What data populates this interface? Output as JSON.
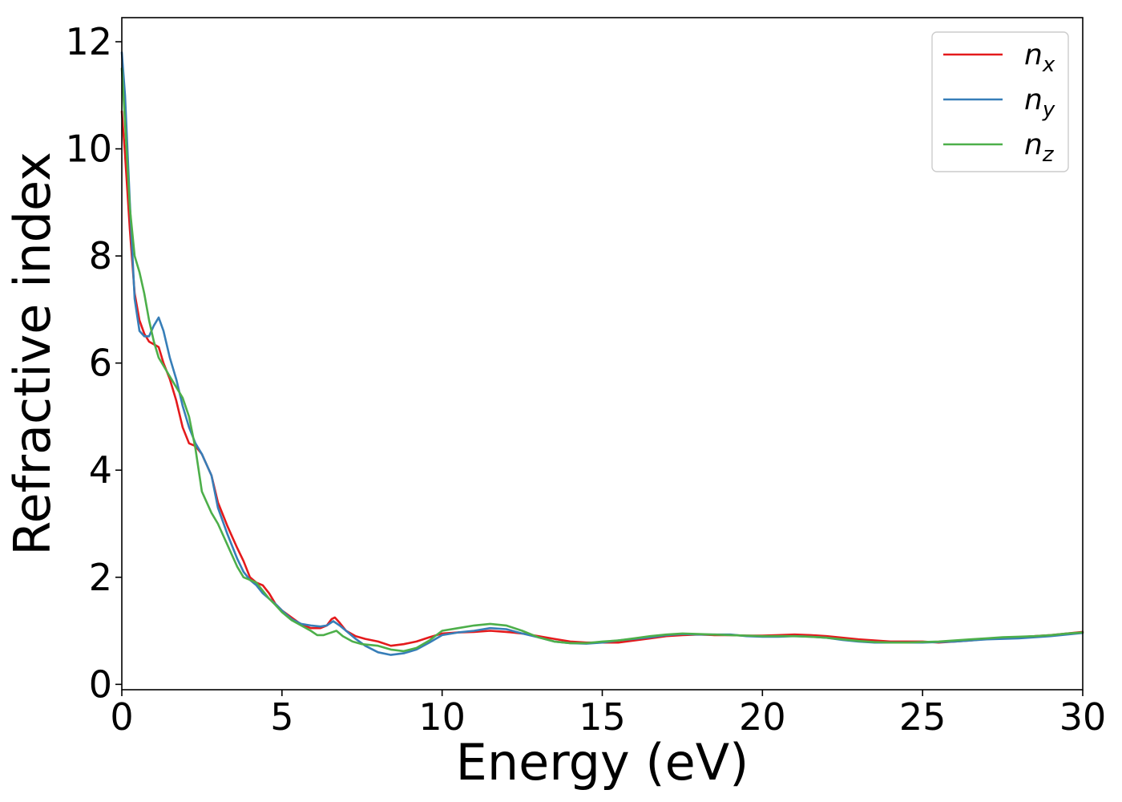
{
  "chart_data": {
    "type": "line",
    "xlabel": "Energy (eV)",
    "ylabel": "Refractive index",
    "xlim": [
      0,
      30
    ],
    "ylim": [
      -0.1,
      12.45
    ],
    "xticks": [
      0,
      5,
      10,
      15,
      20,
      25,
      30
    ],
    "yticks": [
      0,
      2,
      4,
      6,
      8,
      10,
      12
    ],
    "grid": false,
    "legend_position": "top-right",
    "series": [
      {
        "name": "n",
        "subscript": "x",
        "color": "#e41a1c",
        "points": [
          [
            0,
            10.7
          ],
          [
            0.1,
            9.9
          ],
          [
            0.25,
            8.5
          ],
          [
            0.4,
            7.3
          ],
          [
            0.55,
            6.8
          ],
          [
            0.7,
            6.55
          ],
          [
            0.85,
            6.4
          ],
          [
            1.0,
            6.35
          ],
          [
            1.15,
            6.3
          ],
          [
            1.3,
            6.0
          ],
          [
            1.5,
            5.7
          ],
          [
            1.7,
            5.3
          ],
          [
            1.9,
            4.8
          ],
          [
            2.1,
            4.5
          ],
          [
            2.3,
            4.45
          ],
          [
            2.5,
            4.3
          ],
          [
            2.8,
            3.9
          ],
          [
            3.0,
            3.4
          ],
          [
            3.3,
            2.95
          ],
          [
            3.6,
            2.55
          ],
          [
            3.8,
            2.3
          ],
          [
            4.0,
            2.0
          ],
          [
            4.2,
            1.9
          ],
          [
            4.4,
            1.85
          ],
          [
            4.6,
            1.7
          ],
          [
            4.8,
            1.5
          ],
          [
            5.0,
            1.38
          ],
          [
            5.3,
            1.25
          ],
          [
            5.6,
            1.12
          ],
          [
            5.9,
            1.05
          ],
          [
            6.2,
            1.05
          ],
          [
            6.4,
            1.1
          ],
          [
            6.55,
            1.22
          ],
          [
            6.65,
            1.25
          ],
          [
            6.8,
            1.15
          ],
          [
            7.0,
            1.0
          ],
          [
            7.3,
            0.9
          ],
          [
            7.6,
            0.85
          ],
          [
            8.0,
            0.8
          ],
          [
            8.4,
            0.72
          ],
          [
            8.8,
            0.75
          ],
          [
            9.2,
            0.8
          ],
          [
            9.6,
            0.88
          ],
          [
            10.0,
            0.95
          ],
          [
            10.5,
            0.97
          ],
          [
            11.0,
            0.98
          ],
          [
            11.5,
            1.0
          ],
          [
            12.0,
            0.98
          ],
          [
            12.5,
            0.95
          ],
          [
            13.0,
            0.9
          ],
          [
            13.5,
            0.85
          ],
          [
            14.0,
            0.8
          ],
          [
            14.5,
            0.78
          ],
          [
            15.0,
            0.78
          ],
          [
            15.5,
            0.78
          ],
          [
            16.0,
            0.82
          ],
          [
            16.5,
            0.86
          ],
          [
            17.0,
            0.9
          ],
          [
            17.5,
            0.92
          ],
          [
            18.0,
            0.93
          ],
          [
            18.5,
            0.92
          ],
          [
            19.0,
            0.92
          ],
          [
            19.5,
            0.91
          ],
          [
            20.0,
            0.91
          ],
          [
            20.5,
            0.92
          ],
          [
            21.0,
            0.93
          ],
          [
            21.5,
            0.92
          ],
          [
            22.0,
            0.9
          ],
          [
            22.5,
            0.87
          ],
          [
            23.0,
            0.84
          ],
          [
            23.5,
            0.82
          ],
          [
            24.0,
            0.8
          ],
          [
            24.5,
            0.8
          ],
          [
            25.0,
            0.8
          ],
          [
            25.5,
            0.78
          ],
          [
            26.0,
            0.8
          ],
          [
            26.5,
            0.82
          ],
          [
            27.0,
            0.85
          ],
          [
            27.5,
            0.87
          ],
          [
            28.0,
            0.88
          ],
          [
            28.5,
            0.9
          ],
          [
            29.0,
            0.92
          ],
          [
            29.5,
            0.95
          ],
          [
            30.0,
            0.98
          ]
        ]
      },
      {
        "name": "n",
        "subscript": "y",
        "color": "#377eb8",
        "points": [
          [
            0,
            11.8
          ],
          [
            0.1,
            11.0
          ],
          [
            0.25,
            9.0
          ],
          [
            0.4,
            7.2
          ],
          [
            0.55,
            6.6
          ],
          [
            0.7,
            6.5
          ],
          [
            0.85,
            6.5
          ],
          [
            1.0,
            6.7
          ],
          [
            1.15,
            6.85
          ],
          [
            1.3,
            6.6
          ],
          [
            1.5,
            6.1
          ],
          [
            1.7,
            5.7
          ],
          [
            1.9,
            5.2
          ],
          [
            2.1,
            4.8
          ],
          [
            2.3,
            4.5
          ],
          [
            2.5,
            4.3
          ],
          [
            2.8,
            3.9
          ],
          [
            3.0,
            3.3
          ],
          [
            3.3,
            2.8
          ],
          [
            3.6,
            2.35
          ],
          [
            3.8,
            2.1
          ],
          [
            4.0,
            1.95
          ],
          [
            4.2,
            1.85
          ],
          [
            4.4,
            1.7
          ],
          [
            4.6,
            1.6
          ],
          [
            4.8,
            1.5
          ],
          [
            5.0,
            1.38
          ],
          [
            5.3,
            1.22
          ],
          [
            5.6,
            1.13
          ],
          [
            5.9,
            1.1
          ],
          [
            6.2,
            1.08
          ],
          [
            6.4,
            1.1
          ],
          [
            6.6,
            1.18
          ],
          [
            6.8,
            1.1
          ],
          [
            7.0,
            1.0
          ],
          [
            7.3,
            0.85
          ],
          [
            7.6,
            0.72
          ],
          [
            8.0,
            0.6
          ],
          [
            8.4,
            0.55
          ],
          [
            8.8,
            0.58
          ],
          [
            9.2,
            0.65
          ],
          [
            9.6,
            0.78
          ],
          [
            10.0,
            0.92
          ],
          [
            10.5,
            0.97
          ],
          [
            11.0,
            1.0
          ],
          [
            11.5,
            1.05
          ],
          [
            12.0,
            1.03
          ],
          [
            12.5,
            0.95
          ],
          [
            13.0,
            0.88
          ],
          [
            13.5,
            0.8
          ],
          [
            14.0,
            0.77
          ],
          [
            14.5,
            0.76
          ],
          [
            15.0,
            0.78
          ],
          [
            15.5,
            0.82
          ],
          [
            16.0,
            0.85
          ],
          [
            16.5,
            0.88
          ],
          [
            17.0,
            0.92
          ],
          [
            17.5,
            0.94
          ],
          [
            18.0,
            0.93
          ],
          [
            18.5,
            0.93
          ],
          [
            19.0,
            0.93
          ],
          [
            19.5,
            0.9
          ],
          [
            20.0,
            0.89
          ],
          [
            20.5,
            0.89
          ],
          [
            21.0,
            0.9
          ],
          [
            21.5,
            0.89
          ],
          [
            22.0,
            0.87
          ],
          [
            22.5,
            0.83
          ],
          [
            23.0,
            0.8
          ],
          [
            23.5,
            0.78
          ],
          [
            24.0,
            0.78
          ],
          [
            24.5,
            0.78
          ],
          [
            25.0,
            0.78
          ],
          [
            25.5,
            0.79
          ],
          [
            26.0,
            0.8
          ],
          [
            26.5,
            0.82
          ],
          [
            27.0,
            0.84
          ],
          [
            27.5,
            0.85
          ],
          [
            28.0,
            0.86
          ],
          [
            28.5,
            0.88
          ],
          [
            29.0,
            0.9
          ],
          [
            29.5,
            0.93
          ],
          [
            30.0,
            0.96
          ]
        ]
      },
      {
        "name": "n",
        "subscript": "z",
        "color": "#4daf4a",
        "points": [
          [
            0,
            11.5
          ],
          [
            0.1,
            10.5
          ],
          [
            0.25,
            8.9
          ],
          [
            0.4,
            8.0
          ],
          [
            0.55,
            7.7
          ],
          [
            0.7,
            7.3
          ],
          [
            0.85,
            6.8
          ],
          [
            1.0,
            6.4
          ],
          [
            1.15,
            6.1
          ],
          [
            1.3,
            5.95
          ],
          [
            1.5,
            5.75
          ],
          [
            1.7,
            5.55
          ],
          [
            1.9,
            5.35
          ],
          [
            2.1,
            5.0
          ],
          [
            2.3,
            4.4
          ],
          [
            2.5,
            3.6
          ],
          [
            2.8,
            3.2
          ],
          [
            3.0,
            3.0
          ],
          [
            3.3,
            2.6
          ],
          [
            3.6,
            2.2
          ],
          [
            3.8,
            2.0
          ],
          [
            4.0,
            1.95
          ],
          [
            4.2,
            1.9
          ],
          [
            4.4,
            1.75
          ],
          [
            4.6,
            1.6
          ],
          [
            4.8,
            1.48
          ],
          [
            5.0,
            1.35
          ],
          [
            5.3,
            1.2
          ],
          [
            5.6,
            1.1
          ],
          [
            5.9,
            1.0
          ],
          [
            6.1,
            0.92
          ],
          [
            6.3,
            0.92
          ],
          [
            6.5,
            0.96
          ],
          [
            6.7,
            1.0
          ],
          [
            6.9,
            0.9
          ],
          [
            7.2,
            0.8
          ],
          [
            7.5,
            0.75
          ],
          [
            8.0,
            0.72
          ],
          [
            8.4,
            0.65
          ],
          [
            8.8,
            0.62
          ],
          [
            9.2,
            0.68
          ],
          [
            9.6,
            0.82
          ],
          [
            10.0,
            1.0
          ],
          [
            10.5,
            1.05
          ],
          [
            11.0,
            1.1
          ],
          [
            11.5,
            1.13
          ],
          [
            12.0,
            1.1
          ],
          [
            12.5,
            1.0
          ],
          [
            13.0,
            0.88
          ],
          [
            13.5,
            0.8
          ],
          [
            14.0,
            0.77
          ],
          [
            14.5,
            0.77
          ],
          [
            15.0,
            0.8
          ],
          [
            15.5,
            0.82
          ],
          [
            16.0,
            0.86
          ],
          [
            16.5,
            0.9
          ],
          [
            17.0,
            0.93
          ],
          [
            17.5,
            0.95
          ],
          [
            18.0,
            0.94
          ],
          [
            18.5,
            0.93
          ],
          [
            19.0,
            0.92
          ],
          [
            19.5,
            0.91
          ],
          [
            20.0,
            0.9
          ],
          [
            20.5,
            0.9
          ],
          [
            21.0,
            0.9
          ],
          [
            21.5,
            0.89
          ],
          [
            22.0,
            0.87
          ],
          [
            22.5,
            0.84
          ],
          [
            23.0,
            0.81
          ],
          [
            23.5,
            0.79
          ],
          [
            24.0,
            0.78
          ],
          [
            24.5,
            0.78
          ],
          [
            25.0,
            0.79
          ],
          [
            25.5,
            0.8
          ],
          [
            26.0,
            0.82
          ],
          [
            26.5,
            0.84
          ],
          [
            27.0,
            0.86
          ],
          [
            27.5,
            0.88
          ],
          [
            28.0,
            0.89
          ],
          [
            28.5,
            0.9
          ],
          [
            29.0,
            0.92
          ],
          [
            29.5,
            0.95
          ],
          [
            30.0,
            0.97
          ]
        ]
      }
    ]
  }
}
